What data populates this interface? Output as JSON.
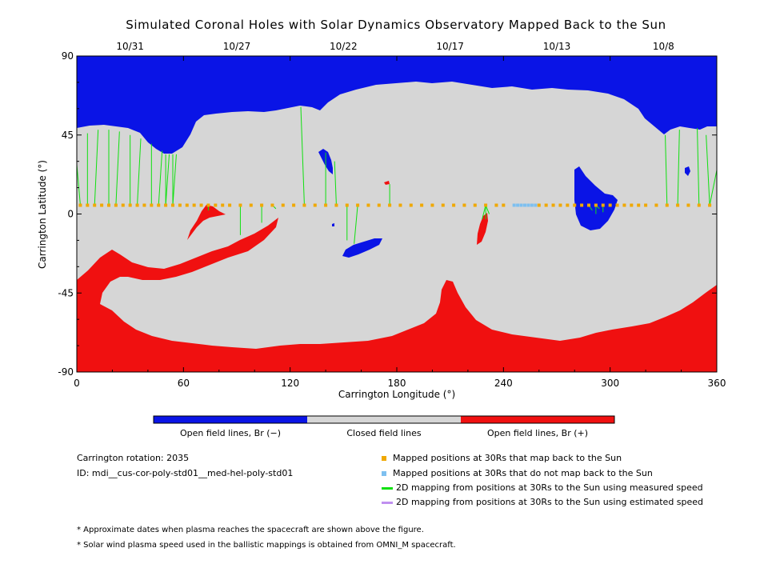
{
  "chart_data": {
    "type": "map",
    "title": "Simulated Coronal Holes with Solar Dynamics Observatory Mapped Back to the Sun",
    "xlabel": "Carrington Longitude (°)",
    "ylabel": "Carrington Latitude (°)",
    "xlim": [
      0,
      360
    ],
    "ylim": [
      -90,
      90
    ],
    "x_ticks": [
      "0",
      "60",
      "120",
      "180",
      "240",
      "300",
      "360"
    ],
    "y_ticks": [
      "90",
      "45",
      "0",
      "-45",
      "-90"
    ],
    "top_dates": [
      {
        "label": "10/31",
        "lon": 30
      },
      {
        "label": "10/27",
        "lon": 90
      },
      {
        "label": "10/22",
        "lon": 150
      },
      {
        "label": "10/17",
        "lon": 210
      },
      {
        "label": "10/13",
        "lon": 270
      },
      {
        "label": "10/8",
        "lon": 330
      }
    ],
    "colorbar": [
      {
        "label": "Open field lines, Br (−)",
        "color": "#0a14e6"
      },
      {
        "label": "Closed field lines",
        "color": "#d6d6d6"
      },
      {
        "label": "Open field lines, Br (+)",
        "color": "#f01010"
      }
    ],
    "mapped_positions_lon": [
      2,
      6,
      10,
      14,
      18,
      22,
      26,
      30,
      34,
      38,
      42,
      46,
      50,
      54,
      58,
      62,
      66,
      70,
      74,
      78,
      82,
      86,
      92,
      98,
      104,
      110,
      116,
      122,
      128,
      134,
      140,
      146,
      152,
      158,
      164,
      170,
      176,
      182,
      188,
      194,
      200,
      206,
      212,
      218,
      224,
      230,
      236,
      240,
      260,
      264,
      268,
      272,
      276,
      280,
      284,
      288,
      292,
      296,
      300,
      304,
      308,
      312,
      316,
      320,
      326,
      332,
      338,
      344,
      350,
      356
    ],
    "mapped_lat": 5,
    "unmapped_positions_lon": [
      246,
      248,
      250,
      252,
      254,
      256,
      258
    ],
    "footpoints": [
      {
        "lon": 0,
        "lat": 28
      },
      {
        "lon": 6,
        "lat": 46
      },
      {
        "lon": 12,
        "lat": 48
      },
      {
        "lon": 18,
        "lat": 48
      },
      {
        "lon": 24,
        "lat": 47
      },
      {
        "lon": 30,
        "lat": 45
      },
      {
        "lon": 36,
        "lat": 43
      },
      {
        "lon": 42,
        "lat": 40
      },
      {
        "lon": 48,
        "lat": 36
      },
      {
        "lon": 50,
        "lat": 34
      },
      {
        "lon": 52,
        "lat": 34
      },
      {
        "lon": 54,
        "lat": 34
      },
      {
        "lon": 56,
        "lat": 34
      },
      {
        "lon": 74,
        "lat": 2
      },
      {
        "lon": 92,
        "lat": -12
      },
      {
        "lon": 104,
        "lat": -5
      },
      {
        "lon": 112,
        "lat": 3
      },
      {
        "lon": 126,
        "lat": 61
      },
      {
        "lon": 140,
        "lat": 35
      },
      {
        "lon": 145,
        "lat": 30
      },
      {
        "lon": 152,
        "lat": -15
      },
      {
        "lon": 156,
        "lat": -17
      },
      {
        "lon": 176,
        "lat": 17
      },
      {
        "lon": 228,
        "lat": -3
      },
      {
        "lon": 230,
        "lat": -3
      },
      {
        "lon": 232,
        "lat": 0
      },
      {
        "lon": 290,
        "lat": 2
      },
      {
        "lon": 292,
        "lat": 0
      },
      {
        "lon": 294,
        "lat": 3
      },
      {
        "lon": 296,
        "lat": 1
      },
      {
        "lon": 331,
        "lat": 45
      },
      {
        "lon": 339,
        "lat": 48
      },
      {
        "lon": 349,
        "lat": 49
      },
      {
        "lon": 354,
        "lat": 45
      },
      {
        "lon": 360,
        "lat": 25
      }
    ]
  },
  "info": {
    "rotation": "Carrington rotation: 2035",
    "id": "ID: mdi__cus-cor-poly-std01__med-hel-poly-std01"
  },
  "legend": [
    {
      "label": "Mapped positions at 30Rs that map back to the Sun",
      "color": "#f0a800",
      "kind": "square"
    },
    {
      "label": "Mapped positions at 30Rs that do not map back to the Sun",
      "color": "#7ec0f0",
      "kind": "square"
    },
    {
      "label": "2D mapping from positions at 30Rs to the Sun using measured speed",
      "color": "#10e010",
      "kind": "line"
    },
    {
      "label": "2D mapping from positions at 30Rs to the Sun using estimated speed",
      "color": "#c090f0",
      "kind": "line"
    }
  ],
  "notes": [
    "* Approximate dates when plasma reaches the spacecraft are shown above the figure.",
    "* Solar wind plasma speed used in the ballistic mappings is obtained from OMNI_M spacecraft."
  ]
}
